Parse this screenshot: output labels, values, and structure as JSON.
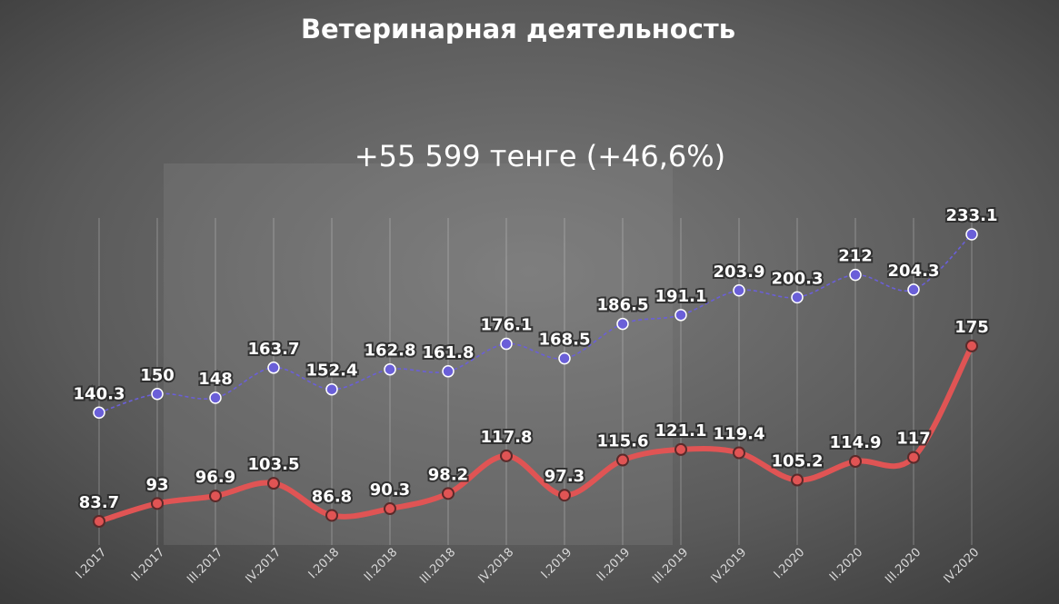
{
  "chart_data": {
    "type": "line",
    "title": "Ветеринарная деятельность",
    "subtitle": "+55 599 тенге (+46,6%)",
    "categories": [
      "I.2017",
      "II.2017",
      "III.2017",
      "IV.2017",
      "I.2018",
      "II.2018",
      "III.2018",
      "IV.2018",
      "I.2019",
      "II.2019",
      "III.2019",
      "IV.2019",
      "I.2020",
      "II.2020",
      "III.2020",
      "IV.2020"
    ],
    "series": [
      {
        "color": "#6a5fd8",
        "style": "dashed",
        "values": [
          140.3,
          150,
          148,
          163.7,
          152.4,
          162.8,
          161.8,
          176.1,
          168.5,
          186.5,
          191.1,
          203.9,
          200.3,
          212,
          204.3,
          233.1
        ]
      },
      {
        "color": "#e05454",
        "style": "solid",
        "values": [
          83.7,
          93,
          96.9,
          103.5,
          86.8,
          90.3,
          98.2,
          117.8,
          97.3,
          115.6,
          121.1,
          119.4,
          105.2,
          114.9,
          117,
          175
        ]
      }
    ],
    "grid": true
  }
}
